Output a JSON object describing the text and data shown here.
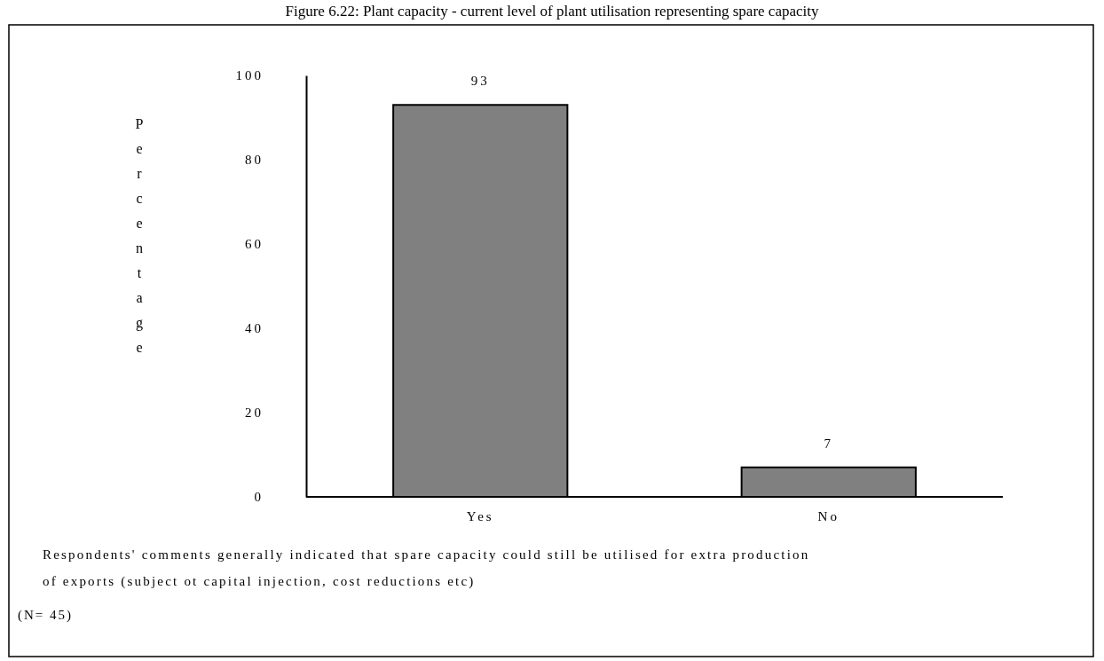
{
  "chart_data": {
    "type": "bar",
    "title": "Figure 6.22: Plant capacity - current level of plant utilisation representing spare capacity",
    "ylabel": "Percentage",
    "categories": [
      "Yes",
      "No"
    ],
    "values": [
      93,
      7
    ],
    "color": "#808080",
    "ylim": [
      0,
      100
    ],
    "yticks": [
      0,
      20,
      40,
      60,
      80,
      100
    ],
    "data_labels": true,
    "annotations": [
      "Respondents' comments generally indicated that spare capacity could still be utilised for extra production of exports (subject ot capital injection, cost reductions etc)",
      "(N= 45)"
    ]
  }
}
